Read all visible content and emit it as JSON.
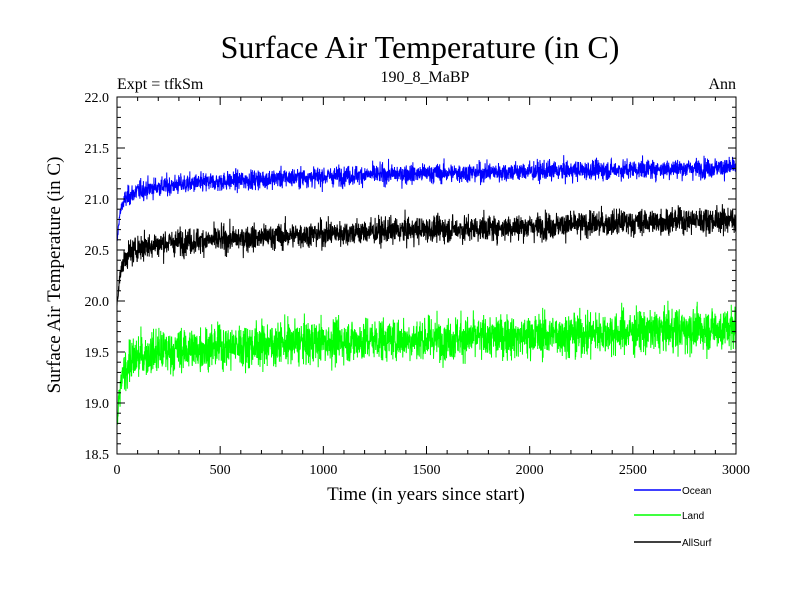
{
  "chart_data": {
    "type": "line",
    "title": "Surface Air Temperature (in C)",
    "subtitle_left": "Expt = tfkSm",
    "subtitle_center": "190_8_MaBP",
    "subtitle_right": "Ann",
    "xlabel": "Time (in years since start)",
    "ylabel": "Surface Air Temperature (in C)",
    "xlim": [
      0,
      3000
    ],
    "ylim": [
      18.5,
      22.0
    ],
    "x_ticks": [
      0,
      500,
      1000,
      1500,
      2000,
      2500,
      3000
    ],
    "x_tick_labels": [
      "0",
      "500",
      "1000",
      "1500",
      "2000",
      "2500",
      "3000"
    ],
    "y_ticks": [
      18.5,
      19.0,
      19.5,
      20.0,
      20.5,
      21.0,
      21.5,
      22.0
    ],
    "y_tick_labels": [
      "18.5",
      "19.0",
      "19.5",
      "20.0",
      "20.5",
      "21.0",
      "21.5",
      "22.0"
    ],
    "legend_placement": "bottom-right",
    "series": [
      {
        "name": "Ocean",
        "color": "#0000ff",
        "x": [
          0,
          10,
          25,
          50,
          100,
          200,
          300,
          500,
          750,
          1000,
          1250,
          1500,
          1750,
          2000,
          2250,
          2500,
          2750,
          3000
        ],
        "values": [
          20.55,
          20.8,
          20.95,
          21.02,
          21.08,
          21.12,
          21.14,
          21.17,
          21.2,
          21.22,
          21.24,
          21.25,
          21.26,
          21.27,
          21.28,
          21.29,
          21.3,
          21.31
        ],
        "noise": 0.09
      },
      {
        "name": "Land",
        "color": "#00ff00",
        "x": [
          0,
          10,
          25,
          50,
          100,
          200,
          300,
          500,
          750,
          1000,
          1250,
          1500,
          1750,
          2000,
          2250,
          2500,
          2750,
          3000
        ],
        "values": [
          18.75,
          19.05,
          19.25,
          19.38,
          19.45,
          19.5,
          19.52,
          19.55,
          19.58,
          19.6,
          19.62,
          19.63,
          19.64,
          19.66,
          19.68,
          19.7,
          19.72,
          19.73
        ],
        "noise": 0.2
      },
      {
        "name": "AllSurf",
        "color": "#000000",
        "x": [
          0,
          10,
          25,
          50,
          100,
          200,
          300,
          500,
          750,
          1000,
          1250,
          1500,
          1750,
          2000,
          2250,
          2500,
          2750,
          3000
        ],
        "values": [
          19.95,
          20.2,
          20.35,
          20.45,
          20.52,
          20.56,
          20.58,
          20.6,
          20.63,
          20.66,
          20.68,
          20.7,
          20.71,
          20.73,
          20.75,
          20.77,
          20.79,
          20.8
        ],
        "noise": 0.12
      }
    ]
  }
}
